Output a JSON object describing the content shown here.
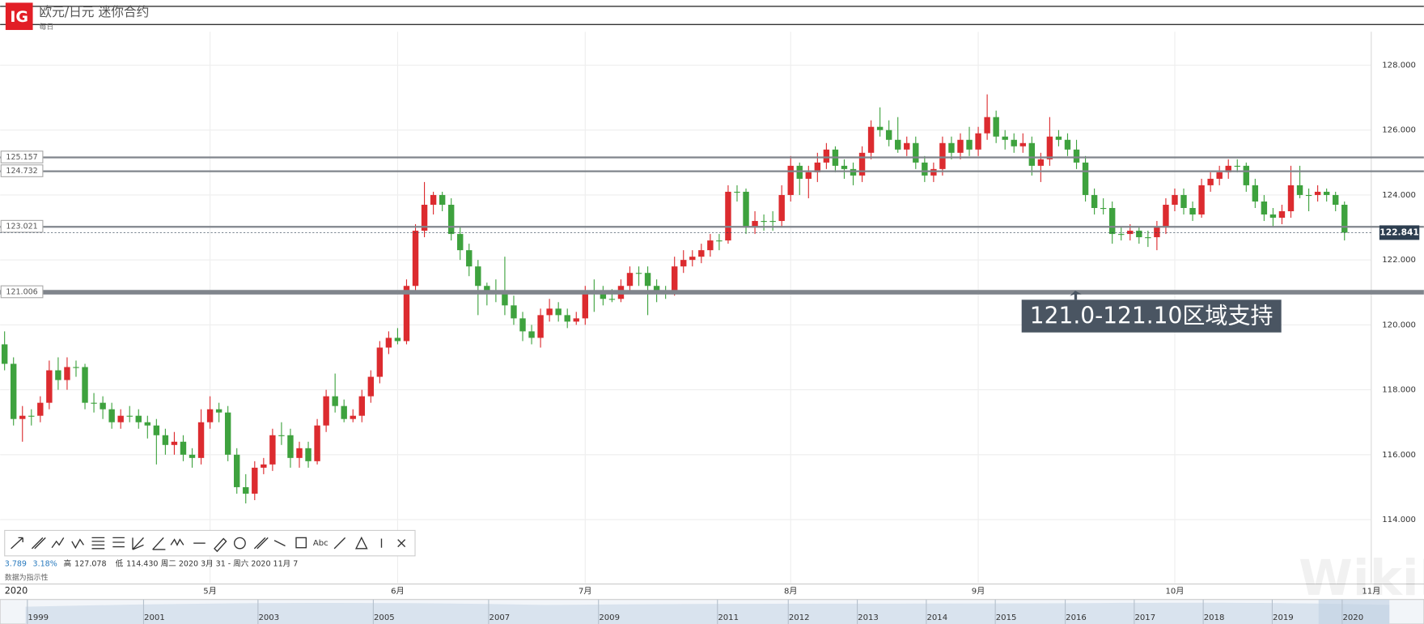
{
  "chart_data": {
    "type": "candlestick",
    "title": "欧元/日元 迷你合约",
    "subtitle": "每日",
    "logo": "IG",
    "up_color": "#dc2b2f",
    "down_color": "#3ea23e",
    "grid": true,
    "categories": [
      null,
      null,
      null,
      null,
      null,
      null,
      null,
      null,
      null,
      null,
      null,
      null,
      null,
      null,
      null,
      null,
      null,
      null,
      null,
      null,
      null,
      null,
      null,
      "5月",
      null,
      null,
      null,
      null,
      null,
      null,
      null,
      null,
      null,
      null,
      null,
      null,
      null,
      null,
      null,
      null,
      null,
      null,
      null,
      null,
      "6月",
      null,
      null,
      null,
      null,
      null,
      null,
      null,
      null,
      null,
      null,
      null,
      null,
      null,
      null,
      null,
      null,
      null,
      null,
      null,
      null,
      "7月",
      null,
      null,
      null,
      null,
      null,
      null,
      null,
      null,
      null,
      null,
      null,
      null,
      null,
      null,
      null,
      null,
      null,
      null,
      null,
      null,
      null,
      null,
      "8月",
      null,
      null,
      null,
      null,
      null,
      null,
      null,
      null,
      null,
      null,
      null,
      null,
      null,
      null,
      null,
      null,
      null,
      null,
      null,
      null,
      "9月",
      null,
      null,
      null,
      null,
      null,
      null,
      null,
      null,
      null,
      null,
      null,
      null,
      null,
      null,
      null,
      null,
      null,
      null,
      null,
      null,
      null,
      "10月",
      null,
      null,
      null,
      null,
      null,
      null,
      null,
      null,
      null,
      null,
      null,
      null,
      null,
      null,
      null,
      null,
      null,
      null,
      null,
      null,
      null,
      "11月"
    ],
    "candles": [
      [
        119.4,
        119.8,
        118.6,
        118.8
      ],
      [
        118.8,
        119.0,
        116.9,
        117.1
      ],
      [
        117.1,
        117.5,
        116.4,
        117.2
      ],
      [
        117.2,
        117.4,
        116.9,
        117.2
      ],
      [
        117.2,
        117.8,
        117.0,
        117.6
      ],
      [
        117.6,
        118.9,
        117.4,
        118.6
      ],
      [
        118.6,
        119.0,
        118.0,
        118.3
      ],
      [
        118.3,
        119.0,
        118.0,
        118.7
      ],
      [
        118.7,
        118.9,
        118.4,
        118.7
      ],
      [
        118.7,
        118.8,
        117.4,
        117.6
      ],
      [
        117.6,
        117.9,
        117.3,
        117.6
      ],
      [
        117.6,
        117.8,
        117.1,
        117.4
      ],
      [
        117.4,
        117.6,
        116.8,
        117.0
      ],
      [
        117.0,
        117.4,
        116.8,
        117.2
      ],
      [
        117.2,
        117.5,
        117.0,
        117.2
      ],
      [
        117.2,
        117.4,
        116.8,
        117.0
      ],
      [
        117.0,
        117.2,
        116.5,
        116.9
      ],
      [
        116.9,
        117.1,
        115.7,
        116.6
      ],
      [
        116.6,
        116.8,
        116.0,
        116.3
      ],
      [
        116.3,
        116.7,
        116.0,
        116.4
      ],
      [
        116.4,
        116.6,
        115.8,
        116.0
      ],
      [
        116.0,
        116.2,
        115.6,
        115.9
      ],
      [
        115.9,
        117.4,
        115.7,
        117.0
      ],
      [
        117.0,
        117.8,
        116.8,
        117.4
      ],
      [
        117.4,
        117.6,
        117.0,
        117.3
      ],
      [
        117.3,
        117.5,
        115.8,
        116.0
      ],
      [
        116.0,
        116.2,
        114.8,
        115.0
      ],
      [
        115.0,
        115.4,
        114.5,
        114.8
      ],
      [
        114.8,
        115.8,
        114.6,
        115.6
      ],
      [
        115.6,
        115.9,
        115.4,
        115.7
      ],
      [
        115.7,
        116.8,
        115.5,
        116.6
      ],
      [
        116.6,
        117.0,
        116.3,
        116.6
      ],
      [
        116.6,
        116.8,
        115.6,
        115.9
      ],
      [
        115.9,
        116.4,
        115.6,
        116.2
      ],
      [
        116.2,
        116.4,
        115.6,
        115.8
      ],
      [
        115.8,
        117.1,
        115.7,
        116.9
      ],
      [
        116.9,
        118.0,
        116.7,
        117.8
      ],
      [
        117.8,
        118.5,
        117.3,
        117.5
      ],
      [
        117.5,
        117.7,
        117.0,
        117.1
      ],
      [
        117.1,
        117.4,
        117.0,
        117.2
      ],
      [
        117.2,
        118.0,
        117.0,
        117.8
      ],
      [
        117.8,
        118.6,
        117.6,
        118.4
      ],
      [
        118.4,
        119.5,
        118.2,
        119.3
      ],
      [
        119.3,
        119.8,
        119.1,
        119.6
      ],
      [
        119.6,
        119.9,
        119.4,
        119.5
      ],
      [
        119.5,
        121.4,
        119.4,
        121.2
      ],
      [
        121.2,
        123.1,
        121.0,
        122.9
      ],
      [
        122.9,
        124.4,
        122.7,
        123.7
      ],
      [
        123.7,
        124.1,
        123.4,
        124.0
      ],
      [
        124.0,
        124.1,
        123.5,
        123.7
      ],
      [
        123.7,
        123.9,
        122.6,
        122.8
      ],
      [
        122.8,
        123.0,
        122.0,
        122.3
      ],
      [
        122.3,
        122.5,
        121.5,
        121.8
      ],
      [
        121.8,
        122.0,
        120.3,
        121.2
      ],
      [
        121.2,
        121.3,
        120.6,
        121.0
      ],
      [
        121.0,
        121.4,
        120.7,
        121.0
      ],
      [
        121.0,
        122.1,
        120.3,
        120.6
      ],
      [
        120.6,
        120.9,
        120.0,
        120.2
      ],
      [
        120.2,
        120.4,
        119.5,
        119.8
      ],
      [
        119.8,
        120.0,
        119.4,
        119.6
      ],
      [
        119.6,
        120.5,
        119.3,
        120.3
      ],
      [
        120.3,
        120.8,
        120.1,
        120.5
      ],
      [
        120.5,
        120.7,
        120.1,
        120.3
      ],
      [
        120.3,
        120.5,
        119.9,
        120.1
      ],
      [
        120.1,
        120.4,
        120.0,
        120.2
      ],
      [
        120.2,
        121.2,
        120.0,
        121.0
      ],
      [
        121.0,
        121.4,
        120.4,
        121.0
      ],
      [
        121.0,
        121.2,
        120.6,
        120.8
      ],
      [
        120.8,
        121.1,
        120.7,
        120.8
      ],
      [
        120.8,
        121.4,
        120.7,
        121.2
      ],
      [
        121.2,
        121.8,
        121.0,
        121.6
      ],
      [
        121.6,
        121.8,
        121.2,
        121.6
      ],
      [
        121.6,
        121.8,
        120.3,
        121.2
      ],
      [
        121.2,
        121.4,
        120.7,
        121.0
      ],
      [
        121.0,
        121.2,
        120.8,
        121.0
      ],
      [
        121.0,
        122.1,
        120.9,
        121.8
      ],
      [
        121.8,
        122.3,
        121.6,
        122.0
      ],
      [
        122.0,
        122.3,
        121.8,
        122.1
      ],
      [
        122.1,
        122.5,
        121.9,
        122.3
      ],
      [
        122.3,
        122.8,
        122.1,
        122.6
      ],
      [
        122.6,
        122.8,
        122.3,
        122.6
      ],
      [
        122.6,
        124.3,
        122.5,
        124.1
      ],
      [
        124.1,
        124.3,
        123.8,
        124.1
      ],
      [
        124.1,
        124.2,
        122.8,
        123.0
      ],
      [
        123.0,
        123.5,
        122.8,
        123.2
      ],
      [
        123.2,
        123.4,
        122.9,
        123.2
      ],
      [
        123.2,
        123.5,
        122.9,
        123.2
      ],
      [
        123.2,
        124.3,
        123.0,
        124.0
      ],
      [
        124.0,
        125.2,
        123.8,
        124.9
      ],
      [
        124.9,
        125.0,
        124.0,
        124.5
      ],
      [
        124.5,
        124.9,
        123.9,
        124.7
      ],
      [
        124.7,
        125.3,
        124.4,
        125.0
      ],
      [
        125.0,
        125.6,
        124.8,
        125.4
      ],
      [
        125.4,
        125.5,
        124.7,
        124.9
      ],
      [
        124.9,
        125.1,
        124.5,
        124.8
      ],
      [
        124.8,
        125.0,
        124.3,
        124.6
      ],
      [
        124.6,
        125.5,
        124.4,
        125.3
      ],
      [
        125.3,
        126.3,
        125.1,
        126.1
      ],
      [
        126.1,
        126.7,
        125.8,
        126.0
      ],
      [
        126.0,
        126.3,
        125.5,
        125.7
      ],
      [
        125.7,
        126.4,
        125.3,
        125.4
      ],
      [
        125.4,
        125.8,
        125.2,
        125.6
      ],
      [
        125.6,
        125.8,
        124.8,
        125.0
      ],
      [
        125.0,
        125.2,
        124.4,
        124.6
      ],
      [
        124.6,
        125.0,
        124.4,
        124.8
      ],
      [
        124.8,
        125.8,
        124.6,
        125.6
      ],
      [
        125.6,
        125.8,
        125.1,
        125.3
      ],
      [
        125.3,
        125.9,
        125.1,
        125.7
      ],
      [
        125.7,
        126.1,
        125.2,
        125.4
      ],
      [
        125.4,
        126.1,
        125.2,
        125.9
      ],
      [
        125.9,
        127.1,
        125.7,
        126.4
      ],
      [
        126.4,
        126.6,
        125.6,
        125.8
      ],
      [
        125.8,
        126.0,
        125.4,
        125.7
      ],
      [
        125.7,
        125.9,
        125.3,
        125.5
      ],
      [
        125.5,
        125.9,
        125.3,
        125.6
      ],
      [
        125.6,
        125.8,
        124.6,
        124.9
      ],
      [
        124.9,
        125.3,
        124.4,
        125.1
      ],
      [
        125.1,
        126.4,
        124.9,
        125.8
      ],
      [
        125.8,
        126.0,
        125.5,
        125.7
      ],
      [
        125.7,
        125.9,
        125.2,
        125.4
      ],
      [
        125.4,
        125.7,
        124.8,
        125.0
      ],
      [
        125.0,
        125.2,
        123.8,
        124.0
      ],
      [
        124.0,
        124.2,
        123.4,
        123.6
      ],
      [
        123.6,
        123.9,
        123.4,
        123.6
      ],
      [
        123.6,
        123.8,
        122.5,
        122.8
      ],
      [
        122.8,
        123.0,
        122.6,
        122.8
      ],
      [
        122.8,
        123.1,
        122.6,
        122.9
      ],
      [
        122.9,
        123.0,
        122.5,
        122.7
      ],
      [
        122.7,
        122.9,
        122.4,
        122.7
      ],
      [
        122.7,
        123.2,
        122.3,
        123.0
      ],
      [
        123.0,
        123.9,
        122.8,
        123.7
      ],
      [
        123.7,
        124.2,
        123.5,
        124.0
      ],
      [
        124.0,
        124.2,
        123.4,
        123.6
      ],
      [
        123.6,
        123.8,
        123.2,
        123.4
      ],
      [
        123.4,
        124.5,
        123.3,
        124.3
      ],
      [
        124.3,
        124.7,
        124.1,
        124.5
      ],
      [
        124.5,
        124.9,
        124.3,
        124.7
      ],
      [
        124.7,
        125.1,
        124.5,
        124.9
      ],
      [
        124.9,
        125.1,
        124.7,
        124.9
      ],
      [
        124.9,
        125.0,
        124.1,
        124.3
      ],
      [
        124.3,
        124.5,
        123.6,
        123.8
      ],
      [
        123.8,
        124.0,
        123.2,
        123.4
      ],
      [
        123.4,
        123.6,
        123.0,
        123.3
      ],
      [
        123.3,
        123.7,
        123.1,
        123.5
      ],
      [
        123.5,
        124.9,
        123.3,
        124.3
      ],
      [
        124.3,
        124.9,
        123.9,
        124.0
      ],
      [
        124.0,
        124.2,
        123.5,
        124.0
      ],
      [
        124.0,
        124.3,
        123.8,
        124.1
      ],
      [
        124.1,
        124.2,
        123.8,
        124.0
      ],
      [
        124.0,
        124.1,
        123.5,
        123.7
      ],
      [
        123.7,
        123.8,
        122.6,
        122.841
      ],
      null,
      null,
      null
    ],
    "ylim": [
      112.1,
      129.0
    ],
    "yticks": [
      {
        "value": 114,
        "label": "114.000"
      },
      {
        "value": 116,
        "label": "116.000"
      },
      {
        "value": 118,
        "label": "118.000"
      },
      {
        "value": 120,
        "label": "120.000"
      },
      {
        "value": 122,
        "label": "122.000"
      },
      {
        "value": 124,
        "label": "124.000"
      },
      {
        "value": 126,
        "label": "126.000"
      },
      {
        "value": 128,
        "label": "128.000"
      }
    ],
    "levels": [
      125.157,
      124.732,
      123.021,
      121.006
    ],
    "last_price": 122.841,
    "annotation": "121.0-121.10区域支持",
    "year_label": "2020",
    "stats": {
      "change": "3.789",
      "change_pct": "3.18%",
      "high_label": "高",
      "high": "127.078",
      "low_label": "低",
      "low": "114.430",
      "range": "周二 2020 3月 31 - 周六 2020 11月 7",
      "note": "数据为指示性"
    },
    "navigator_years": [
      "1999",
      "2001",
      "2003",
      "2005",
      "2007",
      "2009",
      "2011",
      "2012",
      "2013",
      "2014",
      "2015",
      "2016",
      "2017",
      "2018",
      "2019",
      "2020"
    ],
    "toolbar_text": "Abc",
    "watermark": "WikiFX"
  }
}
